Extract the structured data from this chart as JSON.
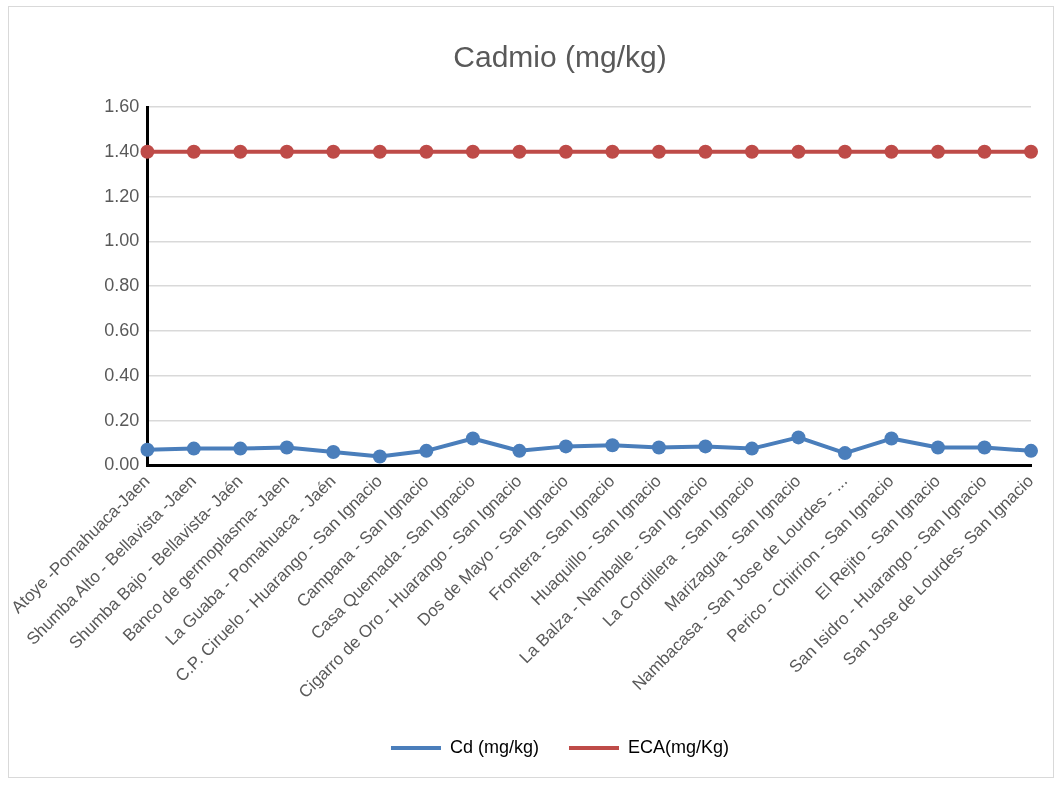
{
  "chart_data": {
    "type": "line",
    "title": "Cadmio (mg/kg)",
    "categories": [
      "Atoye -Pomahuaca-Jaen",
      "Shumba Alto - Bellavista -Jaen",
      "Shumba Bajo - Bellavista- Jaén",
      "Banco de germoplasma- Jaen",
      "La Guaba - Pomahuaca - Jaén",
      "C.P. Ciruelo - Huarango - San Ignacio",
      "Campana - San Ignacio",
      "Casa Quemada - San Ignacio",
      "Cigarro de Oro - Huarango - San Ignacio",
      "Dos de Mayo - San Ignacio",
      "Frontera - San Ignacio",
      "Huaquillo - San Ignacio",
      "La Balza - Namballe - San Ignacio",
      "La Cordillera  - San Ignacio",
      "Marizagua - San Ignacio",
      "Nambacasa - San Jose de Lourdes - ...",
      "Perico - Chirrion - San Ignacio",
      "El Rejito - San Ignacio",
      "San Isidro - Huarango - San Ignacio",
      "San Jose de Lourdes- San Ignacio"
    ],
    "series": [
      {
        "name": "Cd (mg/kg)",
        "color": "#4a7ebb",
        "values": [
          0.07,
          0.075,
          0.075,
          0.08,
          0.06,
          0.04,
          0.065,
          0.12,
          0.065,
          0.085,
          0.09,
          0.08,
          0.085,
          0.075,
          0.125,
          0.055,
          0.12,
          0.08,
          0.08,
          0.065
        ]
      },
      {
        "name": "ECA(mg/Kg)",
        "color": "#be4b48",
        "values": [
          1.4,
          1.4,
          1.4,
          1.4,
          1.4,
          1.4,
          1.4,
          1.4,
          1.4,
          1.4,
          1.4,
          1.4,
          1.4,
          1.4,
          1.4,
          1.4,
          1.4,
          1.4,
          1.4,
          1.4
        ]
      }
    ],
    "ylim": [
      0,
      1.6
    ],
    "yticks": [
      {
        "value": 0,
        "label": "0.00"
      },
      {
        "value": 0.2,
        "label": "0.20"
      },
      {
        "value": 0.4,
        "label": "0.40"
      },
      {
        "value": 0.6,
        "label": "0.60"
      },
      {
        "value": 0.8,
        "label": "0.80"
      },
      {
        "value": 1.0,
        "label": "1.00"
      },
      {
        "value": 1.2,
        "label": "1.20"
      },
      {
        "value": 1.4,
        "label": "1.40"
      },
      {
        "value": 1.6,
        "label": "1.60"
      }
    ],
    "grid": "y",
    "legend": "bottom",
    "marker": "circle",
    "line_style": "solid"
  }
}
